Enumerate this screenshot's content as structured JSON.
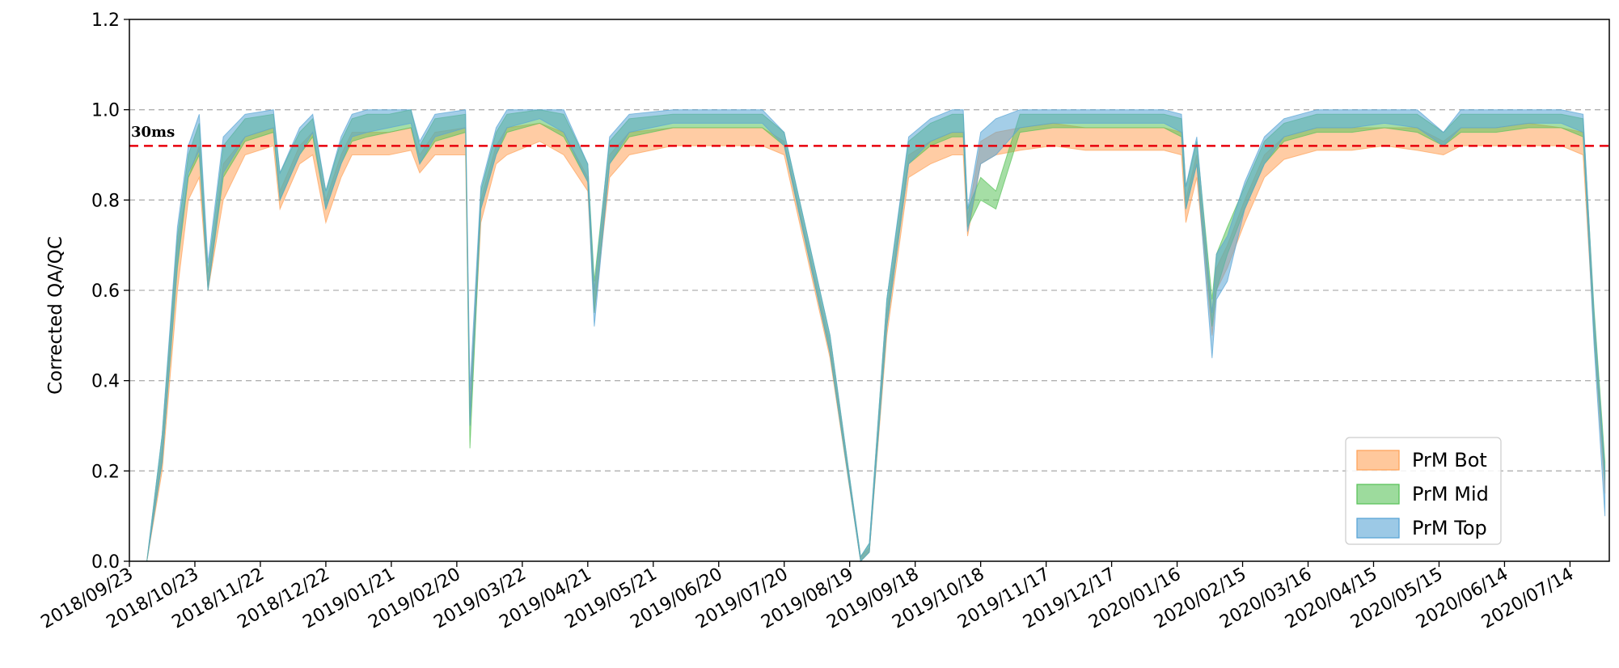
{
  "chart_data": {
    "type": "area",
    "title": "",
    "xlabel": "",
    "ylabel": "Corrected QA/QC",
    "ylim": [
      0.0,
      1.2
    ],
    "yticks": [
      "0.0",
      "0.2",
      "0.4",
      "0.6",
      "0.8",
      "1.0",
      "1.2"
    ],
    "xlim": [
      "2018-09-23",
      "2020-08-01"
    ],
    "xticks": [
      "2018/09/23",
      "2018/10/23",
      "2018/11/22",
      "2018/12/22",
      "2019/01/21",
      "2019/02/20",
      "2019/03/22",
      "2019/04/21",
      "2019/05/21",
      "2019/06/20",
      "2019/07/20",
      "2019/08/19",
      "2019/09/18",
      "2019/10/18",
      "2019/11/17",
      "2019/12/17",
      "2020/01/16",
      "2020/02/15",
      "2020/03/16",
      "2020/04/15",
      "2020/05/15",
      "2020/06/14",
      "2020/07/14"
    ],
    "grid": "horizontal dashed",
    "reference_line": {
      "y": 0.92,
      "label": "30ms",
      "color": "#e8000b"
    },
    "legend_position": "lower-right",
    "series": [
      {
        "name": "PrM Bot",
        "color": "#ffa35a",
        "x": [
          "2018-09-26",
          "2018-10-01",
          "2018-10-08",
          "2018-10-15",
          "2018-10-20",
          "2018-10-25",
          "2018-10-29",
          "2018-11-05",
          "2018-11-15",
          "2018-11-28",
          "2018-12-01",
          "2018-12-10",
          "2018-12-16",
          "2018-12-22",
          "2018-12-29",
          "2019-01-03",
          "2019-01-10",
          "2019-01-20",
          "2019-01-30",
          "2019-02-03",
          "2019-02-10",
          "2019-02-24",
          "2019-02-26",
          "2019-03-03",
          "2019-03-10",
          "2019-03-15",
          "2019-03-30",
          "2019-04-10",
          "2019-04-21",
          "2019-04-24",
          "2019-05-01",
          "2019-05-10",
          "2019-05-30",
          "2019-06-20",
          "2019-07-10",
          "2019-07-20",
          "2019-08-10",
          "2019-08-24",
          "2019-08-28",
          "2019-09-05",
          "2019-09-15",
          "2019-09-25",
          "2019-10-05",
          "2019-10-10",
          "2019-10-12",
          "2019-10-18",
          "2019-10-25",
          "2019-11-05",
          "2019-11-20",
          "2019-12-05",
          "2019-12-25",
          "2020-01-10",
          "2020-01-18",
          "2020-01-20",
          "2020-01-25",
          "2020-02-01",
          "2020-02-03",
          "2020-02-08",
          "2020-02-16",
          "2020-02-25",
          "2020-03-05",
          "2020-03-20",
          "2020-04-05",
          "2020-04-20",
          "2020-05-05",
          "2020-05-17",
          "2020-05-25",
          "2020-06-10",
          "2020-06-25",
          "2020-07-10",
          "2020-07-20",
          "2020-07-25",
          "2020-07-30"
        ],
        "lower": [
          0.0,
          0.0,
          0.2,
          0.6,
          0.8,
          0.85,
          0.6,
          0.8,
          0.9,
          0.92,
          0.78,
          0.88,
          0.9,
          0.75,
          0.85,
          0.9,
          0.9,
          0.9,
          0.91,
          0.86,
          0.9,
          0.9,
          0.3,
          0.75,
          0.88,
          0.9,
          0.93,
          0.9,
          0.82,
          0.55,
          0.85,
          0.9,
          0.92,
          0.92,
          0.92,
          0.9,
          0.45,
          0.0,
          0.02,
          0.5,
          0.85,
          0.88,
          0.9,
          0.9,
          0.72,
          0.88,
          0.9,
          0.91,
          0.92,
          0.91,
          0.91,
          0.91,
          0.9,
          0.75,
          0.85,
          0.5,
          0.6,
          0.65,
          0.75,
          0.85,
          0.89,
          0.91,
          0.91,
          0.92,
          0.91,
          0.9,
          0.92,
          0.92,
          0.92,
          0.92,
          0.9,
          0.5,
          0.15
        ],
        "upper": [
          0.0,
          0.0,
          0.25,
          0.7,
          0.85,
          0.92,
          0.62,
          0.88,
          0.94,
          0.96,
          0.82,
          0.92,
          0.95,
          0.8,
          0.9,
          0.95,
          0.95,
          0.95,
          0.96,
          0.9,
          0.95,
          0.96,
          0.35,
          0.8,
          0.92,
          0.96,
          0.97,
          0.95,
          0.85,
          0.6,
          0.9,
          0.95,
          0.96,
          0.96,
          0.96,
          0.93,
          0.48,
          0.01,
          0.03,
          0.55,
          0.9,
          0.93,
          0.95,
          0.95,
          0.76,
          0.93,
          0.95,
          0.96,
          0.97,
          0.96,
          0.96,
          0.96,
          0.95,
          0.8,
          0.9,
          0.55,
          0.65,
          0.7,
          0.8,
          0.9,
          0.94,
          0.96,
          0.96,
          0.96,
          0.96,
          0.93,
          0.96,
          0.96,
          0.97,
          0.96,
          0.95,
          0.55,
          0.2
        ]
      },
      {
        "name": "PrM Mid",
        "color": "#5bc35b",
        "x": [
          "2018-09-26",
          "2018-10-01",
          "2018-10-08",
          "2018-10-15",
          "2018-10-20",
          "2018-10-25",
          "2018-10-29",
          "2018-11-05",
          "2018-11-15",
          "2018-11-28",
          "2018-12-01",
          "2018-12-10",
          "2018-12-16",
          "2018-12-22",
          "2018-12-29",
          "2019-01-03",
          "2019-01-10",
          "2019-01-20",
          "2019-01-30",
          "2019-02-03",
          "2019-02-10",
          "2019-02-24",
          "2019-02-26",
          "2019-03-03",
          "2019-03-10",
          "2019-03-15",
          "2019-03-30",
          "2019-04-10",
          "2019-04-21",
          "2019-04-24",
          "2019-05-01",
          "2019-05-10",
          "2019-05-30",
          "2019-06-20",
          "2019-07-10",
          "2019-07-20",
          "2019-08-10",
          "2019-08-24",
          "2019-08-28",
          "2019-09-05",
          "2019-09-15",
          "2019-09-25",
          "2019-10-05",
          "2019-10-10",
          "2019-10-12",
          "2019-10-18",
          "2019-10-25",
          "2019-11-05",
          "2019-11-20",
          "2019-12-05",
          "2019-12-25",
          "2020-01-10",
          "2020-01-18",
          "2020-01-20",
          "2020-01-25",
          "2020-02-01",
          "2020-02-03",
          "2020-02-08",
          "2020-02-16",
          "2020-02-25",
          "2020-03-05",
          "2020-03-20",
          "2020-04-05",
          "2020-04-20",
          "2020-05-05",
          "2020-05-17",
          "2020-05-25",
          "2020-06-10",
          "2020-06-25",
          "2020-07-10",
          "2020-07-20",
          "2020-07-25",
          "2020-07-30"
        ],
        "lower": [
          0.0,
          0.0,
          0.22,
          0.65,
          0.85,
          0.9,
          0.6,
          0.85,
          0.93,
          0.95,
          0.8,
          0.9,
          0.94,
          0.78,
          0.88,
          0.93,
          0.94,
          0.95,
          0.96,
          0.88,
          0.93,
          0.95,
          0.25,
          0.78,
          0.9,
          0.95,
          0.97,
          0.94,
          0.84,
          0.55,
          0.88,
          0.94,
          0.96,
          0.96,
          0.96,
          0.92,
          0.46,
          0.0,
          0.02,
          0.52,
          0.88,
          0.92,
          0.94,
          0.94,
          0.74,
          0.8,
          0.78,
          0.95,
          0.96,
          0.96,
          0.96,
          0.96,
          0.94,
          0.78,
          0.88,
          0.52,
          0.6,
          0.68,
          0.78,
          0.88,
          0.93,
          0.95,
          0.95,
          0.96,
          0.95,
          0.92,
          0.95,
          0.95,
          0.96,
          0.96,
          0.94,
          0.5,
          0.18
        ],
        "upper": [
          0.0,
          0.0,
          0.28,
          0.72,
          0.9,
          0.97,
          0.64,
          0.92,
          0.98,
          0.99,
          0.86,
          0.95,
          0.98,
          0.82,
          0.93,
          0.98,
          0.99,
          0.99,
          1.0,
          0.92,
          0.98,
          0.99,
          0.32,
          0.82,
          0.95,
          0.99,
          1.0,
          0.99,
          0.88,
          0.62,
          0.93,
          0.98,
          0.99,
          0.99,
          0.99,
          0.95,
          0.5,
          0.01,
          0.04,
          0.58,
          0.93,
          0.97,
          0.99,
          0.99,
          0.78,
          0.85,
          0.82,
          0.99,
          0.99,
          0.99,
          0.99,
          0.99,
          0.98,
          0.83,
          0.93,
          0.58,
          0.68,
          0.74,
          0.83,
          0.93,
          0.97,
          0.99,
          0.99,
          0.99,
          0.99,
          0.95,
          0.99,
          0.99,
          0.99,
          0.99,
          0.98,
          0.56,
          0.22
        ]
      },
      {
        "name": "PrM Top",
        "color": "#5aa5d6",
        "x": [
          "2018-09-26",
          "2018-10-01",
          "2018-10-08",
          "2018-10-15",
          "2018-10-20",
          "2018-10-25",
          "2018-10-29",
          "2018-11-05",
          "2018-11-15",
          "2018-11-28",
          "2018-12-01",
          "2018-12-10",
          "2018-12-16",
          "2018-12-22",
          "2018-12-29",
          "2019-01-03",
          "2019-01-10",
          "2019-01-20",
          "2019-01-30",
          "2019-02-03",
          "2019-02-10",
          "2019-02-24",
          "2019-02-26",
          "2019-03-03",
          "2019-03-10",
          "2019-03-15",
          "2019-03-30",
          "2019-04-10",
          "2019-04-21",
          "2019-04-24",
          "2019-05-01",
          "2019-05-10",
          "2019-05-30",
          "2019-06-20",
          "2019-07-10",
          "2019-07-20",
          "2019-08-10",
          "2019-08-24",
          "2019-08-28",
          "2019-09-05",
          "2019-09-15",
          "2019-09-25",
          "2019-10-05",
          "2019-10-10",
          "2019-10-12",
          "2019-10-18",
          "2019-10-25",
          "2019-11-05",
          "2019-11-20",
          "2019-12-05",
          "2019-12-25",
          "2020-01-10",
          "2020-01-18",
          "2020-01-20",
          "2020-01-25",
          "2020-02-01",
          "2020-02-03",
          "2020-02-08",
          "2020-02-16",
          "2020-02-25",
          "2020-03-05",
          "2020-03-20",
          "2020-04-05",
          "2020-04-20",
          "2020-05-05",
          "2020-05-17",
          "2020-05-25",
          "2020-06-10",
          "2020-06-25",
          "2020-07-10",
          "2020-07-20",
          "2020-07-25",
          "2020-07-30"
        ],
        "lower": [
          0.0,
          0.0,
          0.22,
          0.66,
          0.86,
          0.91,
          0.6,
          0.86,
          0.94,
          0.96,
          0.8,
          0.9,
          0.95,
          0.78,
          0.88,
          0.94,
          0.95,
          0.96,
          0.97,
          0.88,
          0.94,
          0.96,
          0.3,
          0.78,
          0.9,
          0.96,
          0.98,
          0.95,
          0.84,
          0.52,
          0.88,
          0.95,
          0.97,
          0.97,
          0.97,
          0.92,
          0.46,
          0.0,
          0.02,
          0.52,
          0.88,
          0.93,
          0.95,
          0.95,
          0.73,
          0.88,
          0.9,
          0.96,
          0.97,
          0.97,
          0.97,
          0.97,
          0.95,
          0.78,
          0.88,
          0.45,
          0.58,
          0.62,
          0.78,
          0.88,
          0.94,
          0.96,
          0.96,
          0.97,
          0.96,
          0.92,
          0.96,
          0.96,
          0.97,
          0.97,
          0.95,
          0.48,
          0.1
        ],
        "upper": [
          0.0,
          0.0,
          0.28,
          0.74,
          0.92,
          0.99,
          0.66,
          0.94,
          0.99,
          1.0,
          0.86,
          0.96,
          0.99,
          0.82,
          0.94,
          0.99,
          1.0,
          1.0,
          1.0,
          0.93,
          0.99,
          1.0,
          0.38,
          0.83,
          0.96,
          1.0,
          1.0,
          1.0,
          0.88,
          0.6,
          0.94,
          0.99,
          1.0,
          1.0,
          1.0,
          0.95,
          0.5,
          0.01,
          0.04,
          0.58,
          0.94,
          0.98,
          1.0,
          1.0,
          0.78,
          0.95,
          0.98,
          1.0,
          1.0,
          1.0,
          1.0,
          1.0,
          0.99,
          0.83,
          0.94,
          0.55,
          0.68,
          0.72,
          0.84,
          0.94,
          0.98,
          1.0,
          1.0,
          1.0,
          1.0,
          0.95,
          1.0,
          1.0,
          1.0,
          1.0,
          0.99,
          0.55,
          0.2
        ]
      }
    ]
  }
}
